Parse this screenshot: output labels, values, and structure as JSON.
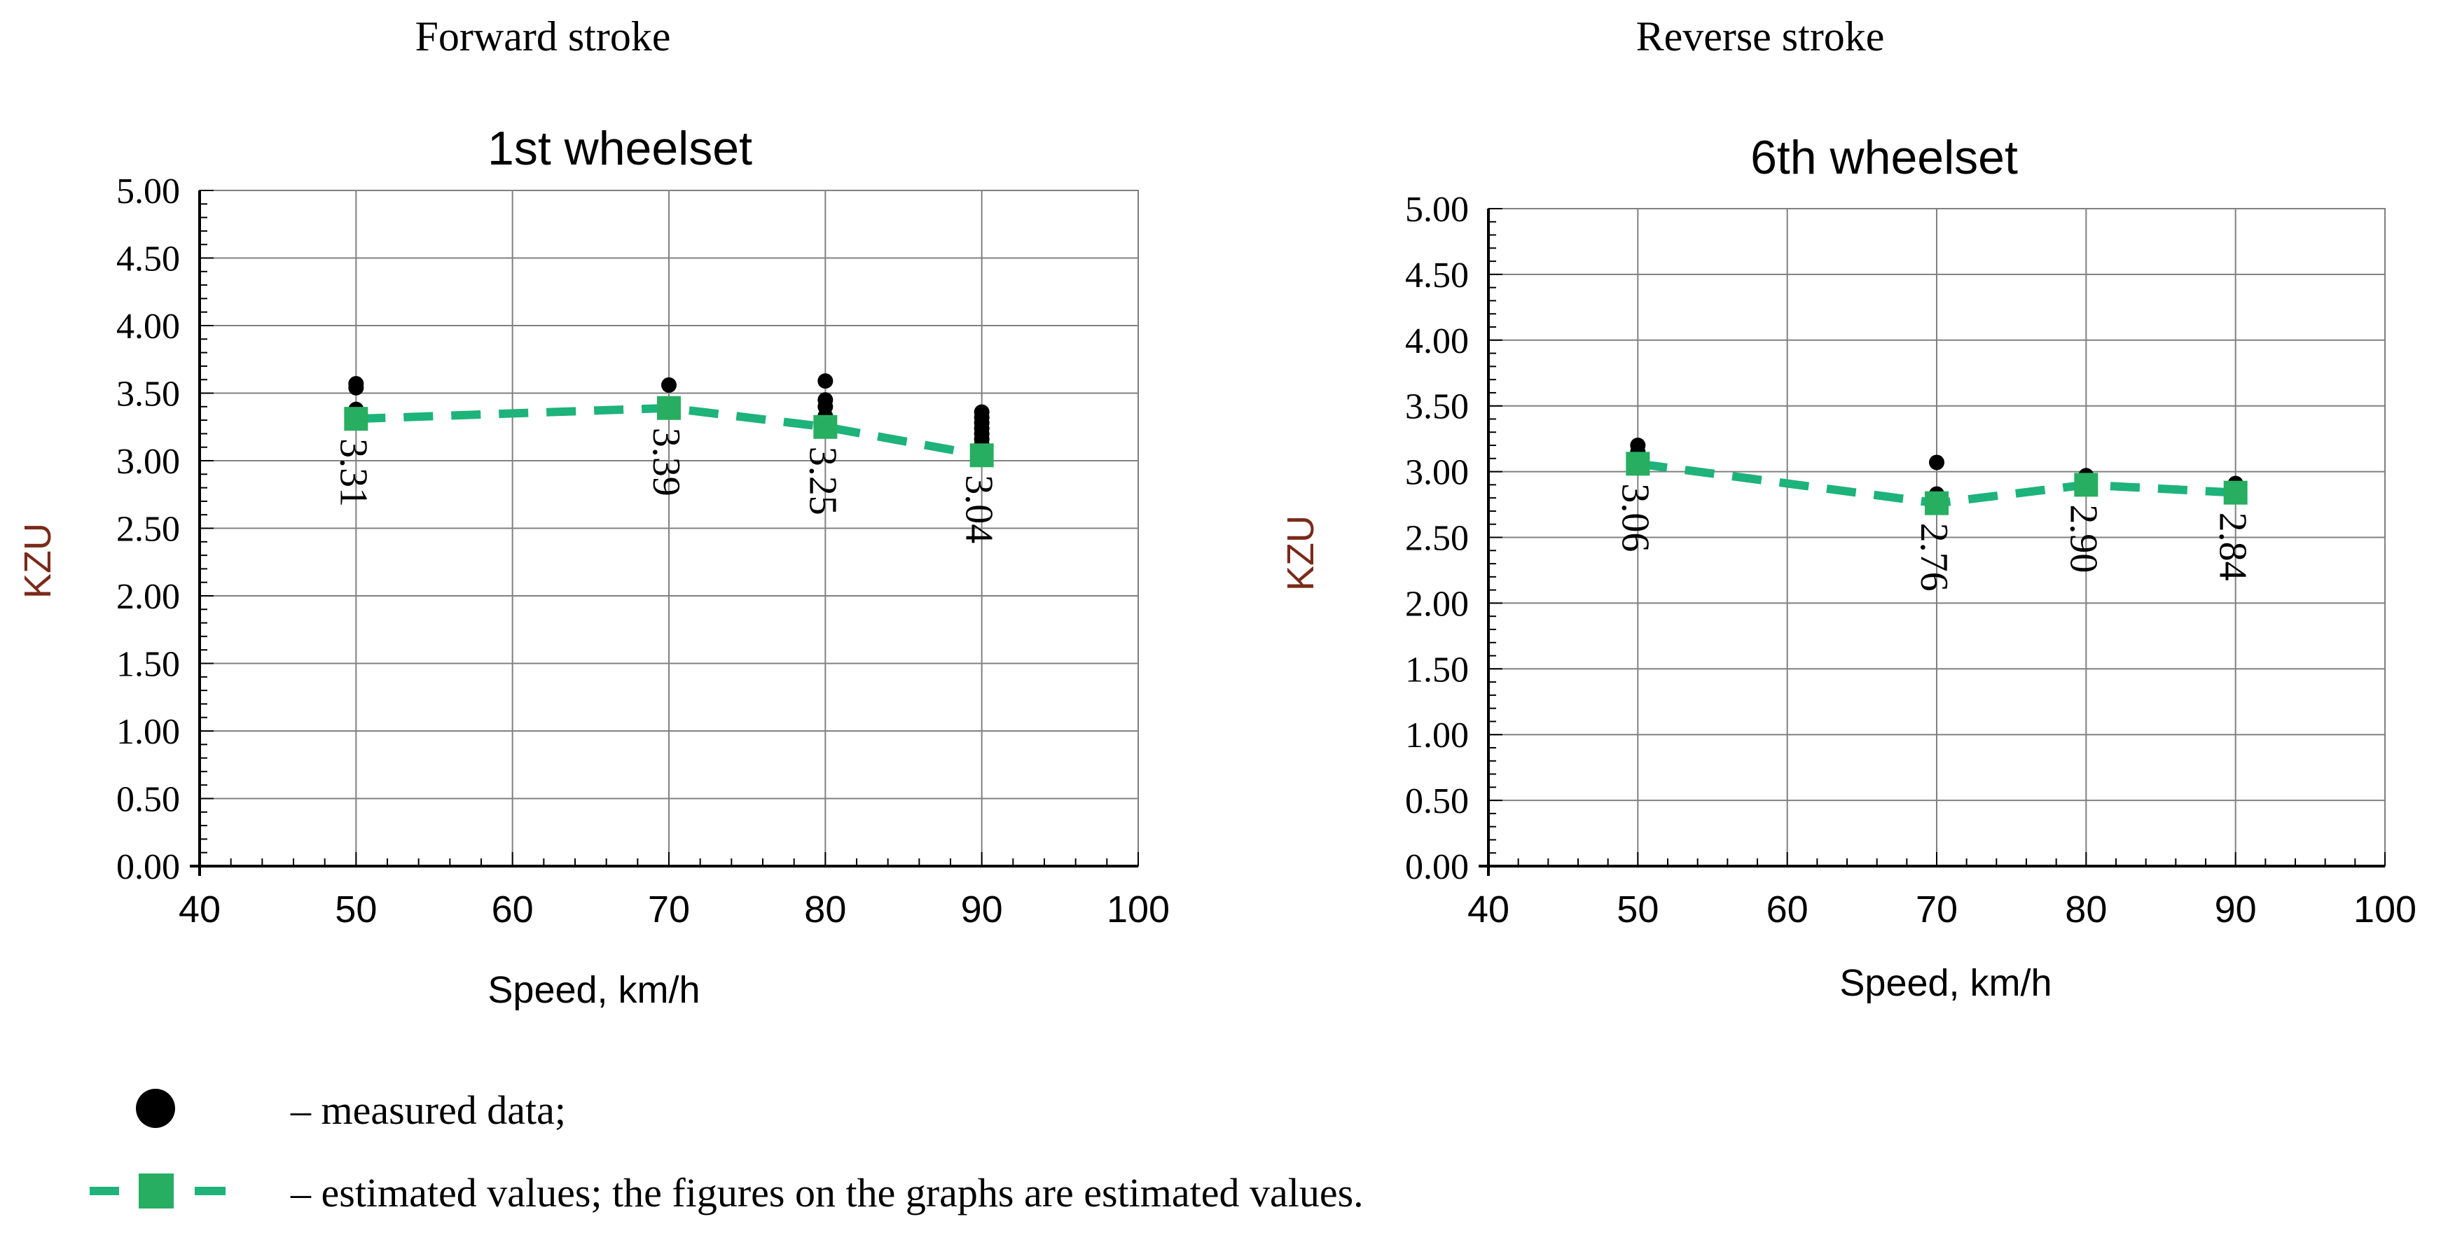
{
  "colors": {
    "estimated": "#1db37a",
    "estimated_marker": "#27ae60",
    "measured": "#000000",
    "axis_title": "#7a2a1a",
    "grid": "#808080",
    "text": "#000000"
  },
  "legend": {
    "measured_label": "– measured data;",
    "estimated_label": "– estimated values; the figures on the graphs are estimated values."
  },
  "chart_data": [
    {
      "type": "line",
      "panel_heading": "Forward stroke",
      "title": "1st wheelset",
      "xlabel": "Speed, km/h",
      "ylabel": "KZU",
      "xlim": [
        40,
        100
      ],
      "ylim": [
        0,
        5
      ],
      "x_ticks": [
        "40",
        "50",
        "60",
        "70",
        "80",
        "90",
        "100"
      ],
      "y_ticks": [
        "0.00",
        "0.50",
        "1.00",
        "1.50",
        "2.00",
        "2.50",
        "3.00",
        "3.50",
        "4.00",
        "4.50",
        "5.00"
      ],
      "grid": true,
      "estimated": {
        "x": [
          50,
          70,
          80,
          90
        ],
        "y": [
          3.31,
          3.39,
          3.25,
          3.04
        ],
        "labels": [
          "3.31",
          "3.39",
          "3.25",
          "3.04"
        ]
      },
      "measured": [
        {
          "x": 50,
          "y": 3.57
        },
        {
          "x": 50,
          "y": 3.54
        },
        {
          "x": 50,
          "y": 3.38
        },
        {
          "x": 50,
          "y": 3.35
        },
        {
          "x": 70,
          "y": 3.56
        },
        {
          "x": 70,
          "y": 3.4
        },
        {
          "x": 70,
          "y": 3.37
        },
        {
          "x": 80,
          "y": 3.59
        },
        {
          "x": 80,
          "y": 3.45
        },
        {
          "x": 80,
          "y": 3.4
        },
        {
          "x": 80,
          "y": 3.33
        },
        {
          "x": 80,
          "y": 3.3
        },
        {
          "x": 90,
          "y": 3.36
        },
        {
          "x": 90,
          "y": 3.32
        },
        {
          "x": 90,
          "y": 3.28
        },
        {
          "x": 90,
          "y": 3.24
        },
        {
          "x": 90,
          "y": 3.2
        },
        {
          "x": 90,
          "y": 3.16
        },
        {
          "x": 90,
          "y": 3.12
        },
        {
          "x": 90,
          "y": 3.08
        }
      ]
    },
    {
      "type": "line",
      "panel_heading": "Reverse stroke",
      "title": "6th wheelset",
      "xlabel": "Speed, km/h",
      "ylabel": "KZU",
      "xlim": [
        40,
        100
      ],
      "ylim": [
        0,
        5
      ],
      "x_ticks": [
        "40",
        "50",
        "60",
        "70",
        "80",
        "90",
        "100"
      ],
      "y_ticks": [
        "0.00",
        "0.50",
        "1.00",
        "1.50",
        "2.00",
        "2.50",
        "3.00",
        "3.50",
        "4.00",
        "4.50",
        "5.00"
      ],
      "grid": true,
      "estimated": {
        "x": [
          50,
          70,
          80,
          90
        ],
        "y": [
          3.06,
          2.76,
          2.9,
          2.84
        ],
        "labels": [
          "3.06",
          "2.76",
          "2.90",
          "2.84"
        ]
      },
      "measured": [
        {
          "x": 50,
          "y": 3.2
        },
        {
          "x": 50,
          "y": 3.15
        },
        {
          "x": 50,
          "y": 3.1
        },
        {
          "x": 50,
          "y": 3.06
        },
        {
          "x": 70,
          "y": 3.07
        },
        {
          "x": 70,
          "y": 2.83
        },
        {
          "x": 70,
          "y": 2.78
        },
        {
          "x": 80,
          "y": 2.97
        },
        {
          "x": 80,
          "y": 2.93
        },
        {
          "x": 90,
          "y": 2.91
        },
        {
          "x": 90,
          "y": 2.87
        }
      ]
    }
  ]
}
